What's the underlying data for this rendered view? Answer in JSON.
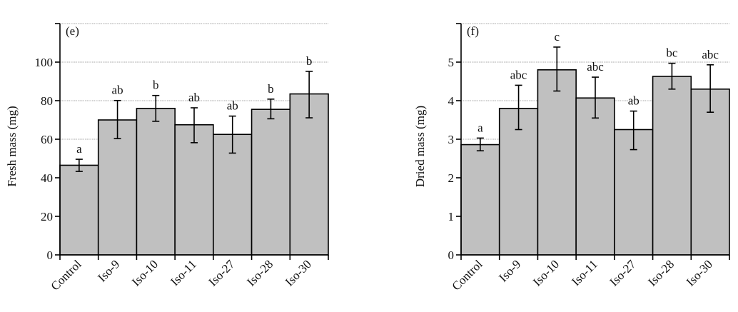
{
  "chart_data": [
    {
      "type": "bar",
      "panel_label": "(e)",
      "ylabel": "Fresh mass (mg)",
      "xlabel": "",
      "ylim": [
        0,
        120
      ],
      "yticks": [
        0,
        20,
        40,
        60,
        80,
        100
      ],
      "grid": "horizontal dotted",
      "categories": [
        "Control",
        "Iso-9",
        "Iso-10",
        "Iso-11",
        "Iso-27",
        "Iso-28",
        "Iso-30"
      ],
      "values": [
        46.5,
        70,
        76,
        67.5,
        62.5,
        75.5,
        83.5
      ],
      "error_low": [
        43.3,
        60.3,
        69.3,
        58.2,
        52.8,
        70.6,
        71.1
      ],
      "error_high": [
        49.6,
        80.1,
        82.7,
        76.3,
        72,
        80.8,
        95.2
      ],
      "significance": [
        "a",
        "ab",
        "b",
        "ab",
        "ab",
        "b",
        "b"
      ],
      "bar_color": "#c0c0c0"
    },
    {
      "type": "bar",
      "panel_label": "(f)",
      "ylabel": "Dried mass (mg)",
      "xlabel": "",
      "ylim": [
        0,
        6
      ],
      "yticks": [
        0,
        1,
        2,
        3,
        4,
        5
      ],
      "grid": "horizontal dotted",
      "categories": [
        "Control",
        "Iso-9",
        "Iso-10",
        "Iso-11",
        "Iso-27",
        "Iso-28",
        "Iso-30"
      ],
      "values": [
        2.86,
        3.8,
        4.8,
        4.07,
        3.25,
        4.63,
        4.3
      ],
      "error_low": [
        2.7,
        3.25,
        4.25,
        3.55,
        2.73,
        4.3,
        3.7
      ],
      "error_high": [
        3.03,
        4.4,
        5.39,
        4.61,
        3.73,
        4.97,
        4.93
      ],
      "significance": [
        "a",
        "abc",
        "c",
        "abc",
        "ab",
        "bc",
        "abc"
      ],
      "bar_color": "#c0c0c0"
    }
  ]
}
